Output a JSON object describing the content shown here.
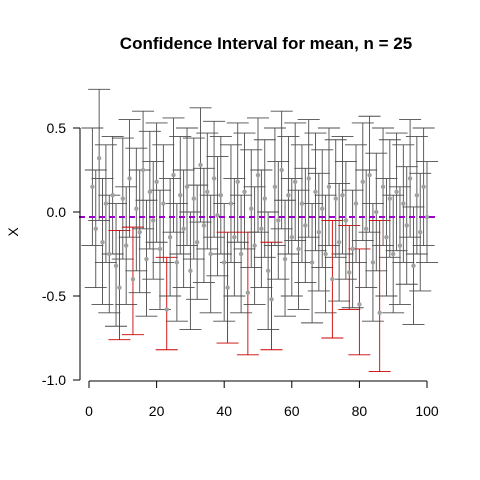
{
  "chart_data": {
    "type": "scatter",
    "title": "Confidence Interval for mean, n = 25",
    "xlabel": "",
    "ylabel": "X",
    "xlim": [
      0,
      100
    ],
    "ylim": [
      -1.0,
      0.7
    ],
    "x_ticks": [
      "0",
      "20",
      "40",
      "60",
      "80",
      "100"
    ],
    "y_ticks": [
      "-1.0",
      "-0.5",
      "0.0",
      "0.5"
    ],
    "reference_line": {
      "y": -0.03,
      "style": "dashed",
      "color": "#9900cc"
    },
    "colors": {
      "covering": "#4d4d4d",
      "missing": "#cc0000",
      "point": "#a0a0a0"
    },
    "grid": false,
    "intervals": [
      {
        "x": 1,
        "mean": 0.15,
        "lower": -0.2,
        "upper": 0.5
      },
      {
        "x": 2,
        "mean": -0.1,
        "lower": -0.45,
        "upper": 0.25
      },
      {
        "x": 3,
        "mean": 0.32,
        "lower": -0.05,
        "upper": 0.73
      },
      {
        "x": 4,
        "mean": -0.18,
        "lower": -0.55,
        "upper": 0.2
      },
      {
        "x": 5,
        "mean": 0.05,
        "lower": -0.3,
        "upper": 0.4
      },
      {
        "x": 6,
        "mean": -0.25,
        "lower": -0.6,
        "upper": 0.1
      },
      {
        "x": 7,
        "mean": 0.1,
        "lower": -0.25,
        "upper": 0.45
      },
      {
        "x": 8,
        "mean": -0.32,
        "lower": -0.68,
        "upper": 0.05
      },
      {
        "x": 9,
        "mean": -0.45,
        "lower": -0.76,
        "upper": -0.11
      },
      {
        "x": 10,
        "mean": 0.08,
        "lower": -0.28,
        "upper": 0.44
      },
      {
        "x": 11,
        "mean": -0.2,
        "lower": -0.55,
        "upper": 0.15
      },
      {
        "x": 12,
        "mean": 0.2,
        "lower": -0.15,
        "upper": 0.55
      },
      {
        "x": 13,
        "mean": -0.4,
        "lower": -0.73,
        "upper": -0.09
      },
      {
        "x": 14,
        "mean": 0.02,
        "lower": -0.35,
        "upper": 0.38
      },
      {
        "x": 15,
        "mean": -0.12,
        "lower": -0.48,
        "upper": 0.25
      },
      {
        "x": 16,
        "mean": 0.25,
        "lower": -0.1,
        "upper": 0.6
      },
      {
        "x": 17,
        "mean": -0.28,
        "lower": -0.62,
        "upper": 0.07
      },
      {
        "x": 18,
        "mean": 0.12,
        "lower": -0.22,
        "upper": 0.48
      },
      {
        "x": 19,
        "mean": -0.05,
        "lower": -0.4,
        "upper": 0.3
      },
      {
        "x": 20,
        "mean": 0.18,
        "lower": -0.18,
        "upper": 0.53
      },
      {
        "x": 21,
        "mean": -0.22,
        "lower": -0.58,
        "upper": 0.13
      },
      {
        "x": 22,
        "mean": 0.05,
        "lower": -0.3,
        "upper": 0.4
      },
      {
        "x": 23,
        "mean": -0.58,
        "lower": -0.82,
        "upper": -0.27
      },
      {
        "x": 24,
        "mean": -0.15,
        "lower": -0.5,
        "upper": 0.2
      },
      {
        "x": 25,
        "mean": 0.22,
        "lower": -0.12,
        "upper": 0.56
      },
      {
        "x": 26,
        "mean": -0.3,
        "lower": -0.65,
        "upper": 0.05
      },
      {
        "x": 27,
        "mean": 0.1,
        "lower": -0.25,
        "upper": 0.45
      },
      {
        "x": 28,
        "mean": -0.1,
        "lower": -0.45,
        "upper": 0.25
      },
      {
        "x": 29,
        "mean": 0.15,
        "lower": -0.2,
        "upper": 0.5
      },
      {
        "x": 30,
        "mean": -0.35,
        "lower": -0.7,
        "upper": 0.0
      },
      {
        "x": 31,
        "mean": 0.08,
        "lower": -0.28,
        "upper": 0.44
      },
      {
        "x": 32,
        "mean": -0.18,
        "lower": -0.52,
        "upper": 0.16
      },
      {
        "x": 33,
        "mean": 0.28,
        "lower": -0.06,
        "upper": 0.62
      },
      {
        "x": 34,
        "mean": -0.08,
        "lower": -0.42,
        "upper": 0.26
      },
      {
        "x": 35,
        "mean": 0.12,
        "lower": -0.22,
        "upper": 0.47
      },
      {
        "x": 36,
        "mean": -0.25,
        "lower": -0.6,
        "upper": 0.1
      },
      {
        "x": 37,
        "mean": 0.2,
        "lower": -0.15,
        "upper": 0.54
      },
      {
        "x": 38,
        "mean": -0.02,
        "lower": -0.38,
        "upper": 0.33
      },
      {
        "x": 39,
        "mean": 0.1,
        "lower": -0.25,
        "upper": 0.45
      },
      {
        "x": 40,
        "mean": -0.3,
        "lower": -0.65,
        "upper": 0.05
      },
      {
        "x": 41,
        "mean": -0.45,
        "lower": -0.78,
        "upper": -0.12
      },
      {
        "x": 42,
        "mean": 0.05,
        "lower": -0.3,
        "upper": 0.4
      },
      {
        "x": 43,
        "mean": -0.15,
        "lower": -0.5,
        "upper": 0.2
      },
      {
        "x": 44,
        "mean": 0.18,
        "lower": -0.18,
        "upper": 0.53
      },
      {
        "x": 45,
        "mean": -0.25,
        "lower": -0.6,
        "upper": 0.1
      },
      {
        "x": 46,
        "mean": 0.12,
        "lower": -0.22,
        "upper": 0.47
      },
      {
        "x": 47,
        "mean": -0.48,
        "lower": -0.85,
        "upper": -0.12
      },
      {
        "x": 48,
        "mean": 0.02,
        "lower": -0.33,
        "upper": 0.37
      },
      {
        "x": 49,
        "mean": -0.2,
        "lower": -0.55,
        "upper": 0.15
      },
      {
        "x": 50,
        "mean": 0.22,
        "lower": -0.12,
        "upper": 0.56
      },
      {
        "x": 51,
        "mean": -0.1,
        "lower": -0.45,
        "upper": 0.25
      },
      {
        "x": 52,
        "mean": 0.08,
        "lower": -0.27,
        "upper": 0.43
      },
      {
        "x": 53,
        "mean": -0.35,
        "lower": -0.7,
        "upper": 0.0
      },
      {
        "x": 54,
        "mean": -0.52,
        "lower": -0.82,
        "upper": -0.18
      },
      {
        "x": 55,
        "mean": 0.15,
        "lower": -0.2,
        "upper": 0.5
      },
      {
        "x": 56,
        "mean": -0.05,
        "lower": -0.4,
        "upper": 0.3
      },
      {
        "x": 57,
        "mean": 0.25,
        "lower": -0.1,
        "upper": 0.6
      },
      {
        "x": 58,
        "mean": -0.28,
        "lower": -0.62,
        "upper": 0.07
      },
      {
        "x": 59,
        "mean": 0.1,
        "lower": -0.25,
        "upper": 0.45
      },
      {
        "x": 60,
        "mean": -0.15,
        "lower": -0.5,
        "upper": 0.2
      },
      {
        "x": 61,
        "mean": 0.18,
        "lower": -0.17,
        "upper": 0.53
      },
      {
        "x": 62,
        "mean": -0.22,
        "lower": -0.58,
        "upper": 0.13
      },
      {
        "x": 63,
        "mean": 0.05,
        "lower": -0.3,
        "upper": 0.4
      },
      {
        "x": 64,
        "mean": -0.08,
        "lower": -0.42,
        "upper": 0.26
      },
      {
        "x": 65,
        "mean": 0.2,
        "lower": -0.15,
        "upper": 0.55
      },
      {
        "x": 66,
        "mean": -0.3,
        "lower": -0.66,
        "upper": 0.05
      },
      {
        "x": 67,
        "mean": 0.12,
        "lower": -0.23,
        "upper": 0.47
      },
      {
        "x": 68,
        "mean": -0.12,
        "lower": -0.47,
        "upper": 0.23
      },
      {
        "x": 69,
        "mean": 0.02,
        "lower": -0.33,
        "upper": 0.37
      },
      {
        "x": 70,
        "mean": -0.25,
        "lower": -0.6,
        "upper": 0.1
      },
      {
        "x": 71,
        "mean": 0.15,
        "lower": -0.2,
        "upper": 0.5
      },
      {
        "x": 72,
        "mean": -0.4,
        "lower": -0.75,
        "upper": -0.05
      },
      {
        "x": 73,
        "mean": 0.08,
        "lower": -0.27,
        "upper": 0.43
      },
      {
        "x": 74,
        "mean": -0.18,
        "lower": -0.53,
        "upper": 0.17
      },
      {
        "x": 75,
        "mean": 0.1,
        "lower": -0.25,
        "upper": 0.45
      },
      {
        "x": 76,
        "mean": -0.05,
        "lower": -0.4,
        "upper": 0.3
      },
      {
        "x": 77,
        "mean": -0.36,
        "lower": -0.58,
        "upper": -0.08
      },
      {
        "x": 78,
        "mean": -0.22,
        "lower": -0.57,
        "upper": 0.13
      },
      {
        "x": 79,
        "mean": 0.05,
        "lower": -0.3,
        "upper": 0.4
      },
      {
        "x": 80,
        "mean": -0.55,
        "lower": -0.85,
        "upper": -0.22
      },
      {
        "x": 81,
        "mean": 0.18,
        "lower": -0.17,
        "upper": 0.53
      },
      {
        "x": 82,
        "mean": -0.1,
        "lower": -0.45,
        "upper": 0.25
      },
      {
        "x": 83,
        "mean": 0.22,
        "lower": -0.12,
        "upper": 0.57
      },
      {
        "x": 84,
        "mean": -0.3,
        "lower": -0.65,
        "upper": 0.05
      },
      {
        "x": 85,
        "mean": 0.0,
        "lower": -0.35,
        "upper": 0.35
      },
      {
        "x": 86,
        "mean": -0.6,
        "lower": -0.95,
        "upper": -0.05
      },
      {
        "x": 87,
        "mean": 0.15,
        "lower": -0.2,
        "upper": 0.5
      },
      {
        "x": 88,
        "mean": -0.15,
        "lower": -0.5,
        "upper": 0.2
      },
      {
        "x": 89,
        "mean": 0.08,
        "lower": -0.27,
        "upper": 0.43
      },
      {
        "x": 90,
        "mean": -0.25,
        "lower": -0.6,
        "upper": 0.1
      },
      {
        "x": 91,
        "mean": 0.12,
        "lower": -0.23,
        "upper": 0.47
      },
      {
        "x": 92,
        "mean": -0.2,
        "lower": -0.55,
        "upper": 0.15
      },
      {
        "x": 93,
        "mean": 0.05,
        "lower": -0.3,
        "upper": 0.4
      },
      {
        "x": 94,
        "mean": -0.08,
        "lower": -0.43,
        "upper": 0.27
      },
      {
        "x": 95,
        "mean": 0.2,
        "lower": -0.15,
        "upper": 0.55
      },
      {
        "x": 96,
        "mean": -0.32,
        "lower": -0.67,
        "upper": 0.03
      },
      {
        "x": 97,
        "mean": 0.1,
        "lower": -0.25,
        "upper": 0.45
      },
      {
        "x": 98,
        "mean": -0.12,
        "lower": -0.47,
        "upper": 0.23
      },
      {
        "x": 99,
        "mean": 0.15,
        "lower": -0.2,
        "upper": 0.5
      },
      {
        "x": 100,
        "mean": -0.03,
        "lower": -0.3,
        "upper": 0.3
      }
    ]
  }
}
